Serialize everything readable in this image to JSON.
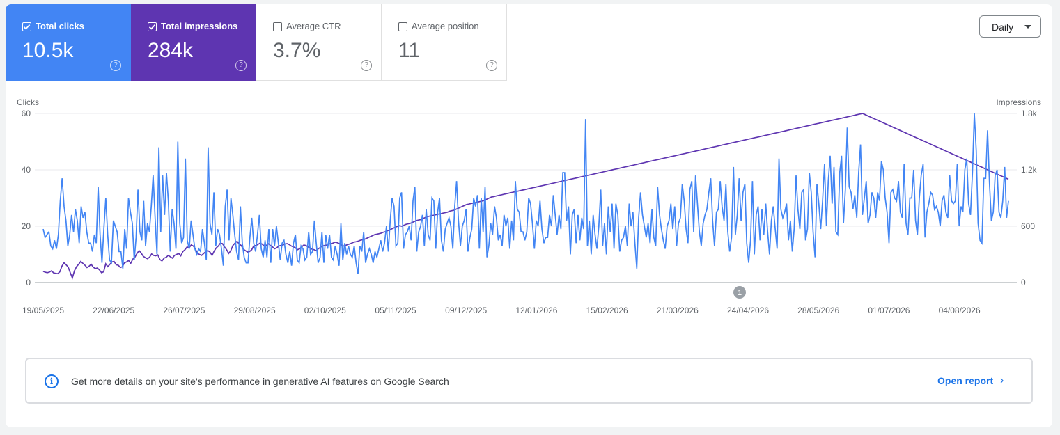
{
  "metrics": [
    {
      "label": "Total clicks",
      "value": "10.5k",
      "checked": true,
      "color": "#4285f4"
    },
    {
      "label": "Total impressions",
      "value": "284k",
      "checked": true,
      "color": "#5e35b1"
    },
    {
      "label": "Average CTR",
      "value": "3.7%",
      "checked": false
    },
    {
      "label": "Average position",
      "value": "11",
      "checked": false
    }
  ],
  "help_glyph": "?",
  "granularity": {
    "selected": "Daily"
  },
  "annotation_label": "1",
  "banner": {
    "info_glyph": "i",
    "message": "Get more details on your site's performance in generative AI features on Google Search",
    "link_label": "Open report",
    "chevron": "›"
  },
  "chart_data": {
    "type": "line",
    "y_left_title": "Clicks",
    "y_right_title": "Impressions",
    "y_left_ticks": [
      "60",
      "40",
      "20",
      "0"
    ],
    "y_right_ticks": [
      "1.8k",
      "1.2k",
      "600",
      "0"
    ],
    "ylim_left": [
      0,
      60
    ],
    "ylim_right": [
      0,
      1800
    ],
    "x_labels": [
      "19/05/2025",
      "22/06/2025",
      "26/07/2025",
      "29/08/2025",
      "02/10/2025",
      "05/11/2025",
      "09/12/2025",
      "12/01/2026",
      "15/02/2026",
      "21/03/2026",
      "24/04/2026",
      "28/05/2026",
      "01/07/2026",
      "04/08/2026"
    ],
    "grid": true,
    "series": [
      {
        "name": "Clicks",
        "axis": "left",
        "color": "#4285f4",
        "values": [
          19,
          16,
          17,
          18,
          13,
          12,
          15,
          12,
          17,
          29,
          37,
          27,
          22,
          13,
          17,
          24,
          18,
          26,
          22,
          14,
          27,
          23,
          25,
          18,
          14,
          14,
          11,
          17,
          14,
          34,
          17,
          7,
          19,
          30,
          17,
          8,
          7,
          22,
          20,
          18,
          11,
          11,
          5,
          19,
          12,
          30,
          25,
          21,
          8,
          16,
          33,
          18,
          15,
          29,
          13,
          21,
          18,
          27,
          38,
          23,
          10,
          48,
          18,
          38,
          24,
          39,
          29,
          11,
          26,
          21,
          12,
          50,
          21,
          14,
          16,
          44,
          15,
          12,
          22,
          17,
          12,
          10,
          12,
          11,
          19,
          14,
          8,
          48,
          21,
          17,
          32,
          13,
          19,
          17,
          12,
          6,
          27,
          33,
          15,
          30,
          24,
          17,
          11,
          8,
          27,
          14,
          9,
          7,
          7,
          16,
          23,
          14,
          11,
          17,
          24,
          12,
          9,
          15,
          9,
          19,
          7,
          19,
          13,
          20,
          14,
          8,
          14,
          15,
          10,
          7,
          11,
          6,
          14,
          17,
          8,
          7,
          13,
          12,
          8,
          9,
          18,
          10,
          11,
          22,
          14,
          7,
          9,
          18,
          7,
          17,
          12,
          17,
          9,
          8,
          13,
          10,
          6,
          21,
          8,
          14,
          10,
          13,
          10,
          9,
          13,
          7,
          3,
          13,
          11,
          18,
          7,
          10,
          12,
          10,
          7,
          11,
          9,
          12,
          15,
          11,
          14,
          20,
          11,
          22,
          30,
          27,
          13,
          14,
          30,
          32,
          12,
          17,
          18,
          20,
          15,
          29,
          34,
          11,
          18,
          20,
          24,
          13,
          26,
          17,
          15,
          30,
          29,
          12,
          25,
          30,
          15,
          11,
          19,
          21,
          23,
          20,
          12,
          27,
          36,
          22,
          13,
          20,
          22,
          26,
          11,
          16,
          19,
          30,
          27,
          31,
          12,
          30,
          18,
          34,
          9,
          13,
          21,
          17,
          27,
          23,
          15,
          17,
          13,
          24,
          20,
          23,
          12,
          22,
          15,
          36,
          26,
          25,
          18,
          18,
          15,
          18,
          30,
          28,
          21,
          12,
          22,
          20,
          29,
          19,
          14,
          16,
          16,
          24,
          20,
          31,
          24,
          17,
          24,
          19,
          39,
          39,
          22,
          27,
          10,
          24,
          26,
          14,
          24,
          15,
          23,
          19,
          58,
          13,
          22,
          10,
          24,
          17,
          12,
          20,
          33,
          13,
          21,
          10,
          27,
          18,
          28,
          12,
          28,
          24,
          11,
          15,
          16,
          20,
          13,
          28,
          20,
          25,
          14,
          5,
          23,
          32,
          24,
          20,
          16,
          21,
          14,
          26,
          16,
          13,
          34,
          24,
          19,
          15,
          12,
          20,
          22,
          28,
          19,
          27,
          13,
          21,
          23,
          35,
          29,
          19,
          14,
          33,
          36,
          18,
          38,
          28,
          18,
          13,
          21,
          24,
          26,
          32,
          37,
          22,
          13,
          25,
          26,
          36,
          27,
          22,
          35,
          18,
          11,
          16,
          41,
          17,
          24,
          37,
          22,
          32,
          35,
          14,
          7,
          15,
          36,
          10,
          24,
          27,
          15,
          26,
          17,
          28,
          18,
          10,
          22,
          27,
          19,
          12,
          44,
          26,
          23,
          25,
          28,
          15,
          22,
          11,
          19,
          38,
          26,
          19,
          32,
          33,
          15,
          19,
          39,
          32,
          18,
          9,
          35,
          28,
          19,
          29,
          42,
          20,
          36,
          45,
          28,
          41,
          18,
          17,
          39,
          45,
          21,
          33,
          55,
          34,
          32,
          26,
          31,
          23,
          39,
          49,
          24,
          30,
          36,
          21,
          24,
          32,
          30,
          23,
          32,
          29,
          43,
          40,
          30,
          25,
          14,
          32,
          33,
          30,
          29,
          36,
          25,
          23,
          42,
          21,
          17,
          30,
          30,
          40,
          22,
          17,
          30,
          38,
          42,
          16,
          25,
          28,
          32,
          31,
          26,
          27,
          25,
          20,
          29,
          31,
          25,
          23,
          38,
          29,
          28,
          29,
          42,
          20,
          27,
          25,
          40,
          44,
          28,
          24,
          39,
          60,
          47,
          21,
          15,
          14,
          37,
          37,
          54,
          35,
          22,
          25,
          38,
          40,
          25,
          23,
          29,
          41,
          23,
          29
        ]
      },
      {
        "name": "Impressions",
        "axis": "right",
        "color": "#5e35b1",
        "values": [
          120,
          110,
          105,
          112,
          125,
          103,
          98,
          95,
          115,
          175,
          210,
          190,
          165,
          105,
          50,
          125,
          170,
          195,
          225,
          205,
          185,
          160,
          175,
          195,
          165,
          150,
          155,
          135,
          105,
          115,
          200,
          170,
          195,
          220,
          225,
          190,
          185,
          160,
          170,
          210,
          220,
          235,
          205,
          250,
          270,
          310,
          340,
          315,
          280,
          265,
          255,
          270,
          305,
          290,
          285,
          295,
          245,
          230,
          260,
          270,
          290,
          275,
          260,
          290,
          300,
          310,
          285,
          330,
          350,
          380,
          370,
          400,
          390,
          360,
          310,
          300,
          290,
          310,
          330,
          340,
          325,
          290,
          335,
          370,
          390,
          420,
          415,
          380,
          350,
          310,
          340,
          395,
          420,
          440,
          410,
          395,
          355,
          340,
          325,
          330,
          350,
          390,
          395,
          405,
          420,
          410,
          390,
          395,
          415,
          395,
          380,
          360,
          370,
          390,
          395,
          400,
          410,
          415,
          405,
          390,
          380,
          370,
          350,
          360,
          380,
          400,
          395,
          380,
          370,
          355,
          350,
          340,
          360,
          375,
          390,
          395,
          400,
          410,
          415,
          420,
          430,
          425,
          415,
          400,
          390,
          395,
          405,
          410,
          420,
          430,
          435,
          440,
          450,
          455,
          460,
          470,
          480,
          490,
          500,
          510,
          515,
          520,
          525,
          535,
          540,
          550,
          560,
          570,
          580,
          590,
          600,
          605,
          600,
          610,
          620,
          625,
          630,
          640,
          650,
          660,
          665,
          670,
          680,
          690,
          700,
          705,
          710,
          715,
          720,
          725,
          730,
          735,
          740,
          745,
          750,
          760,
          765,
          770,
          780,
          790,
          800,
          810,
          820,
          830,
          835,
          840,
          845,
          850,
          855,
          860,
          865,
          870,
          880,
          890,
          900,
          910,
          915,
          920,
          925,
          930,
          935,
          940,
          945,
          950,
          955,
          960,
          965,
          970,
          975,
          980,
          985,
          990,
          995,
          1000,
          1005,
          1010,
          1015,
          1020,
          1025,
          1030,
          1035,
          1040,
          1045,
          1050,
          1055,
          1060,
          1065,
          1070,
          1075,
          1080,
          1085,
          1090,
          1095,
          1100,
          1105,
          1110,
          1115,
          1120,
          1125,
          1130,
          1135,
          1140,
          1145,
          1150,
          1155,
          1160,
          1165,
          1170,
          1175,
          1180,
          1185,
          1190,
          1195,
          1200,
          1205,
          1210,
          1215,
          1220,
          1225,
          1230,
          1235,
          1240,
          1245,
          1250,
          1255,
          1260,
          1265,
          1270,
          1275,
          1280,
          1285,
          1290,
          1295,
          1300,
          1305,
          1310,
          1315,
          1320,
          1325,
          1330,
          1335,
          1340,
          1345,
          1350,
          1355,
          1360,
          1365,
          1370,
          1375,
          1380,
          1385,
          1390,
          1395,
          1400,
          1405,
          1410,
          1415,
          1420,
          1425,
          1430,
          1435,
          1440,
          1445,
          1450,
          1455,
          1460,
          1465,
          1470,
          1475,
          1480,
          1485,
          1490,
          1495,
          1500,
          1505,
          1510,
          1515,
          1520,
          1525,
          1530,
          1535,
          1540,
          1545,
          1550,
          1555,
          1560,
          1565,
          1570,
          1575,
          1580,
          1585,
          1590,
          1595,
          1600,
          1605,
          1610,
          1615,
          1620,
          1625,
          1630,
          1635,
          1640,
          1645,
          1650,
          1655,
          1660,
          1665,
          1670,
          1675,
          1680,
          1685,
          1690,
          1695,
          1700,
          1705,
          1710,
          1715,
          1720,
          1725,
          1730,
          1735,
          1740,
          1745,
          1750,
          1755,
          1760,
          1765,
          1770,
          1775,
          1780,
          1785,
          1790,
          1795,
          1800,
          1790,
          1780,
          1770,
          1760,
          1750,
          1740,
          1730,
          1720,
          1710,
          1700,
          1690,
          1680,
          1670,
          1660,
          1650,
          1640,
          1630,
          1620,
          1610,
          1600,
          1590,
          1580,
          1570,
          1560,
          1550,
          1540,
          1530,
          1520,
          1510,
          1500,
          1490,
          1480,
          1470,
          1460,
          1450,
          1440,
          1430,
          1420,
          1410,
          1400,
          1390,
          1380,
          1370,
          1360,
          1350,
          1340,
          1330,
          1320,
          1310,
          1300,
          1290,
          1280,
          1270,
          1260,
          1250,
          1240,
          1230,
          1220,
          1210,
          1200,
          1190,
          1180,
          1170,
          1160,
          1150,
          1140,
          1130,
          1120,
          1110,
          1100
        ]
      }
    ]
  }
}
